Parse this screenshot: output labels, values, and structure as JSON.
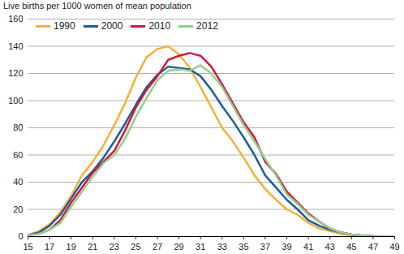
{
  "chart_data": {
    "type": "line",
    "title": "Live births per 1000 women of mean population",
    "x": [
      15,
      16,
      17,
      18,
      19,
      20,
      21,
      22,
      23,
      24,
      25,
      26,
      27,
      28,
      29,
      30,
      31,
      32,
      33,
      34,
      35,
      36,
      37,
      38,
      39,
      40,
      41,
      42,
      43,
      44,
      45,
      46,
      47,
      48,
      49
    ],
    "series": [
      {
        "name": "1990",
        "color": "#f4b03a",
        "values": [
          1,
          4,
          9,
          18,
          30,
          45,
          55,
          67,
          82,
          98,
          117,
          132,
          138,
          140,
          134,
          124,
          110,
          95,
          80,
          70,
          58,
          45,
          35,
          27,
          20,
          16,
          10,
          6,
          4,
          2,
          1,
          0.5,
          0.3,
          0.1,
          0.1
        ]
      },
      {
        "name": "2000",
        "color": "#1c5e98",
        "values": [
          1,
          3,
          8,
          16,
          28,
          40,
          48,
          58,
          70,
          83,
          97,
          110,
          119,
          125,
          124,
          123,
          118,
          108,
          96,
          85,
          73,
          60,
          45,
          36,
          27,
          20,
          12,
          8,
          5,
          3,
          1.5,
          0.7,
          0.3,
          0.1,
          0.1
        ]
      },
      {
        "name": "2010",
        "color": "#d4163d",
        "values": [
          1,
          2,
          5,
          12,
          25,
          36,
          47,
          55,
          63,
          78,
          95,
          108,
          118,
          130,
          133,
          135,
          133,
          125,
          112,
          98,
          84,
          73,
          55,
          46,
          33,
          25,
          17,
          11,
          6,
          3,
          1.5,
          0.7,
          0.3,
          0.1,
          0.1
        ]
      },
      {
        "name": "2012",
        "color": "#8fd08f",
        "values": [
          1,
          2,
          5,
          10,
          22,
          33,
          44,
          54,
          60,
          72,
          88,
          102,
          115,
          122,
          123,
          122,
          126,
          120,
          110,
          96,
          82,
          70,
          57,
          45,
          31,
          24,
          16,
          11,
          6,
          3,
          1.5,
          0.7,
          0.3,
          0.1,
          0.1
        ]
      }
    ],
    "xlim": [
      15,
      49
    ],
    "xticks": [
      15,
      17,
      19,
      21,
      23,
      25,
      27,
      29,
      31,
      33,
      35,
      37,
      39,
      41,
      43,
      45,
      47,
      49
    ],
    "ylim": [
      0,
      160
    ],
    "yticks": [
      0,
      20,
      40,
      60,
      80,
      100,
      120,
      140,
      160
    ],
    "grid": true,
    "legend": "upper left"
  }
}
